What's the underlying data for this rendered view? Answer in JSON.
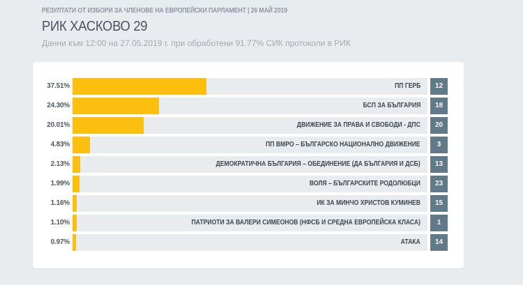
{
  "header": {
    "kicker": "РЕЗУЛТАТИ ОТ ИЗБОРИ ЗА ЧЛЕНОВЕ НА ЕВРОПЕЙСКИ ПАРЛАМЕНТ | 26 МАЙ 2019",
    "title": "РИК ХАСКОВО 29",
    "subtitle": "Данни към 12:00 на 27.05.2019 г. при обработени 91.77% СИК протоколи в РИК"
  },
  "colors": {
    "bar": "#fcbf0f",
    "track": "#e9ecef",
    "number_badge": "#617a8a",
    "background": "#e9ecef"
  },
  "rows": [
    {
      "pct_label": "37.51%",
      "pct": 37.51,
      "party": "ПП ГЕРБ",
      "number": "12"
    },
    {
      "pct_label": "24.30%",
      "pct": 24.3,
      "party": "БСП ЗА БЪЛГАРИЯ",
      "number": "18"
    },
    {
      "pct_label": "20.01%",
      "pct": 20.01,
      "party": "ДВИЖЕНИЕ ЗА ПРАВА И СВОБОДИ - ДПС",
      "number": "20"
    },
    {
      "pct_label": "4.83%",
      "pct": 4.83,
      "party": "ПП ВМРО – БЪЛГАРСКО НАЦИОНАЛНО ДВИЖЕНИЕ",
      "number": "3"
    },
    {
      "pct_label": "2.13%",
      "pct": 2.13,
      "party": "ДЕМОКРАТИЧНА БЪЛГАРИЯ – ОБЕДИНЕНИЕ (ДА БЪЛГАРИЯ И ДСБ)",
      "number": "13"
    },
    {
      "pct_label": "1.99%",
      "pct": 1.99,
      "party": "ВОЛЯ – БЪЛГАРСКИТЕ РОДОЛЮБЦИ",
      "number": "23"
    },
    {
      "pct_label": "1.16%",
      "pct": 1.16,
      "party": "ИК ЗА МИНЧО ХРИСТОВ КУМИНЕВ",
      "number": "15"
    },
    {
      "pct_label": "1.10%",
      "pct": 1.1,
      "party": "ПАТРИОТИ ЗА ВАЛЕРИ СИМЕОНОВ (НФСБ И СРЕДНА ЕВРОПЕЙСКА КЛАСА)",
      "number": "1"
    },
    {
      "pct_label": "0.97%",
      "pct": 0.97,
      "party": "АТАКА",
      "number": "14"
    }
  ],
  "chart_data": {
    "type": "bar",
    "orientation": "horizontal",
    "title": "РИК ХАСКОВО 29",
    "subtitle": "Данни към 12:00 на 27.05.2019 г. при обработени 91.77% СИК протоколи в РИК",
    "categories": [
      "ПП ГЕРБ",
      "БСП ЗА БЪЛГАРИЯ",
      "ДВИЖЕНИЕ ЗА ПРАВА И СВОБОДИ - ДПС",
      "ПП ВМРО – БЪЛГАРСКО НАЦИОНАЛНО ДВИЖЕНИЕ",
      "ДЕМОКРАТИЧНА БЪЛГАРИЯ – ОБЕДИНЕНИЕ (ДА БЪЛГАРИЯ И ДСБ)",
      "ВОЛЯ – БЪЛГАРСКИТЕ РОДОЛЮБЦИ",
      "ИК ЗА МИНЧО ХРИСТОВ КУМИНЕВ",
      "ПАТРИОТИ ЗА ВАЛЕРИ СИМЕОНОВ (НФСБ И СРЕДНА ЕВРОПЕЙСКА КЛАСА)",
      "АТАКА"
    ],
    "values": [
      37.51,
      24.3,
      20.01,
      4.83,
      2.13,
      1.99,
      1.16,
      1.1,
      0.97
    ],
    "ballot_numbers": [
      12,
      18,
      20,
      3,
      13,
      23,
      15,
      1,
      14
    ],
    "xlabel": "",
    "ylabel": "",
    "xlim": [
      0,
      100
    ],
    "unit": "%",
    "grid": false,
    "legend": null
  }
}
